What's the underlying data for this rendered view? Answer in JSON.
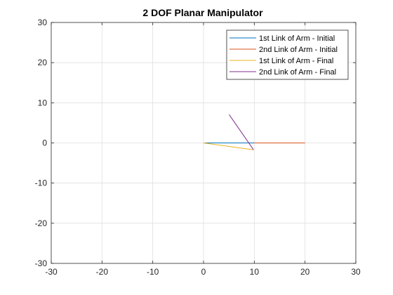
{
  "chart_data": {
    "type": "line",
    "title": "2 DOF Planar Manipulator",
    "xlabel": "",
    "ylabel": "",
    "xlim": [
      -30,
      30
    ],
    "ylim": [
      -30,
      30
    ],
    "xticks": [
      -30,
      -20,
      -10,
      0,
      10,
      20,
      30
    ],
    "yticks": [
      -30,
      -20,
      -10,
      0,
      10,
      20,
      30
    ],
    "grid": true,
    "legend_position": "top-right",
    "series": [
      {
        "name": "1st Link of Arm - Initial",
        "color": "#0072BD",
        "x": [
          0,
          10
        ],
        "y": [
          0,
          0
        ]
      },
      {
        "name": "2nd Link of Arm - Initial",
        "color": "#D95319",
        "x": [
          10,
          20
        ],
        "y": [
          0,
          0
        ]
      },
      {
        "name": "1st Link of Arm - Final",
        "color": "#EDB120",
        "x": [
          0,
          9.85
        ],
        "y": [
          0,
          -1.7
        ]
      },
      {
        "name": "2nd Link of Arm - Final",
        "color": "#7E2F8E",
        "x": [
          9.85,
          5.05
        ],
        "y": [
          -1.7,
          7.05
        ]
      }
    ]
  }
}
